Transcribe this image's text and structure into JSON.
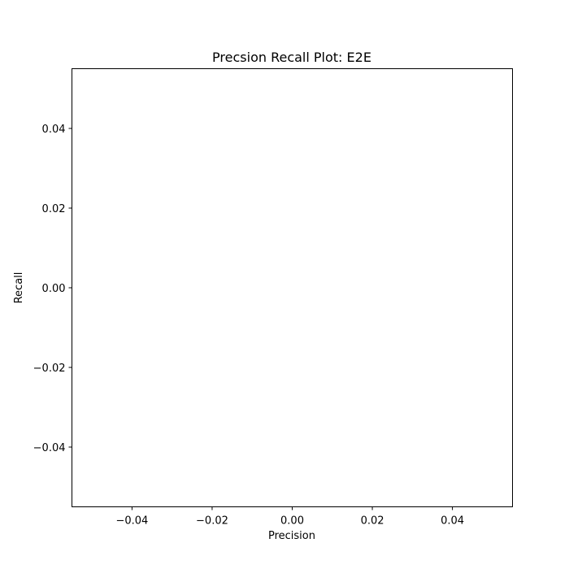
{
  "chart_data": {
    "type": "line",
    "title": "Precsion Recall Plot: E2E",
    "xlabel": "Precision",
    "ylabel": "Recall",
    "xlim": [
      -0.055,
      0.055
    ],
    "ylim": [
      -0.055,
      0.055
    ],
    "xticks": [
      -0.04,
      -0.02,
      0.0,
      0.02,
      0.04
    ],
    "yticks": [
      -0.04,
      -0.02,
      0.0,
      0.02,
      0.04
    ],
    "xtick_labels": [
      "−0.04",
      "−0.02",
      "0.00",
      "0.02",
      "0.04"
    ],
    "ytick_labels": [
      "−0.04",
      "−0.02",
      "0.00",
      "0.02",
      "0.04"
    ],
    "grid": false,
    "series": []
  },
  "colors": {
    "axes_edge": "#000000",
    "background": "#ffffff"
  }
}
